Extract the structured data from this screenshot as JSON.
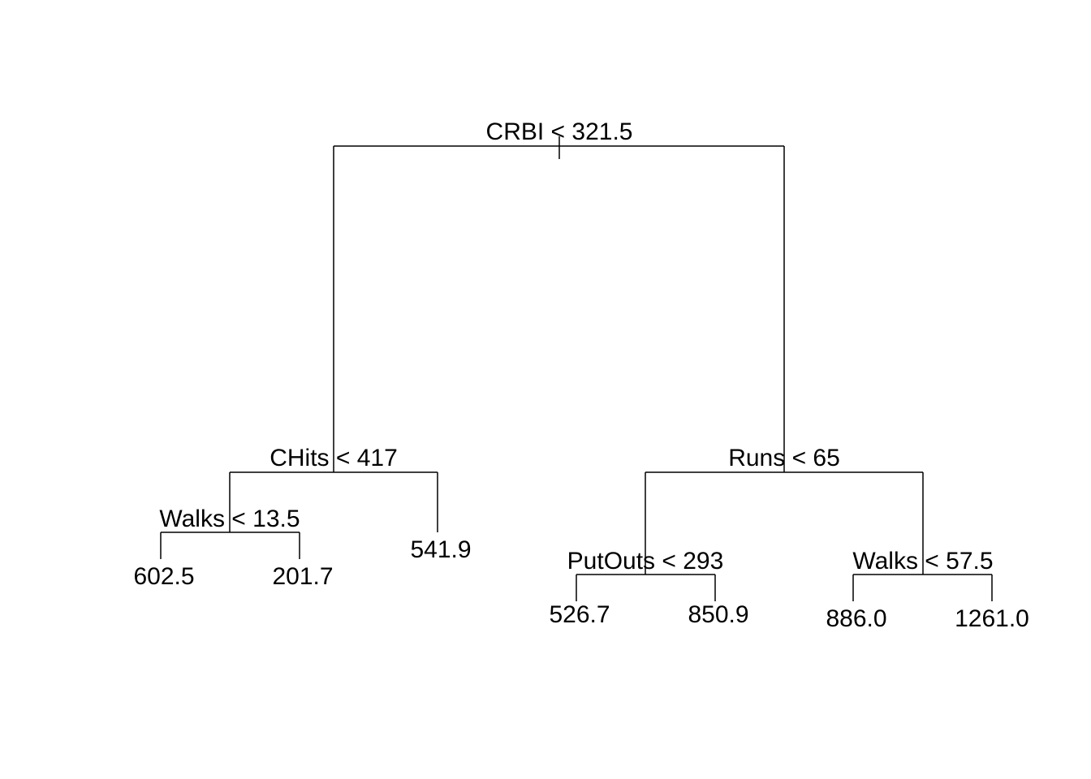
{
  "tree": {
    "splits": [
      {
        "id": "root",
        "label": "CRBI < 321.5"
      },
      {
        "id": "left",
        "label": "CHits < 417"
      },
      {
        "id": "left-left",
        "label": "Walks < 13.5"
      },
      {
        "id": "right",
        "label": "Runs < 65"
      },
      {
        "id": "right-left",
        "label": "PutOuts < 293"
      },
      {
        "id": "right-right",
        "label": "Walks < 57.5"
      }
    ],
    "leaves": [
      {
        "id": "leaf-1",
        "value": "602.5"
      },
      {
        "id": "leaf-2",
        "value": "201.7"
      },
      {
        "id": "leaf-3",
        "value": "541.9"
      },
      {
        "id": "leaf-4",
        "value": "526.7"
      },
      {
        "id": "leaf-5",
        "value": "850.9"
      },
      {
        "id": "leaf-6",
        "value": "886.0"
      },
      {
        "id": "leaf-7",
        "value": "1261.0"
      }
    ]
  }
}
